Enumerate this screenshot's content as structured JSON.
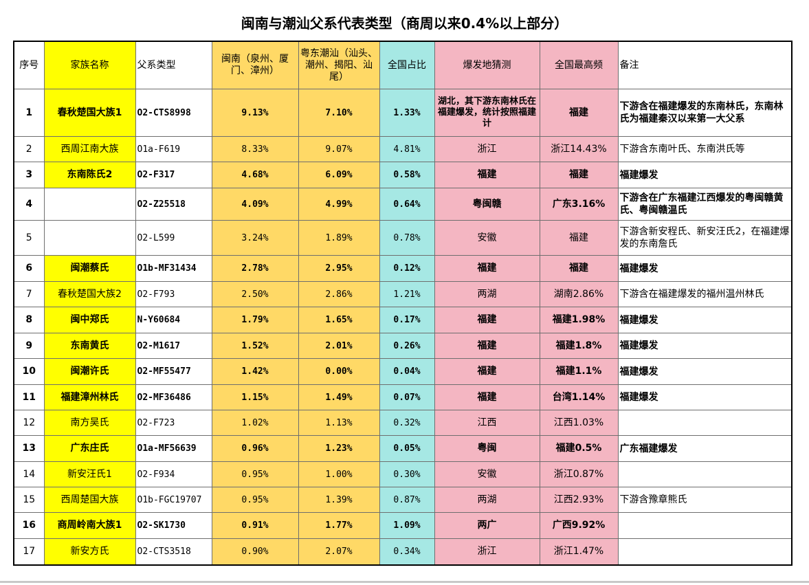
{
  "title": "闽南与潮汕父系代表类型（商周以来0.4%以上部分）",
  "headers": {
    "seq": "序号",
    "family": "家族名称",
    "haplo": "父系类型",
    "minnan": "闽南（泉州、厦门、漳州）",
    "chaoshan": "粤东潮汕（汕头、潮州、揭阳、汕尾）",
    "national": "全国占比",
    "origin": "爆发地猜测",
    "highest": "全国最高频",
    "note": "备注"
  },
  "colors": {
    "family_col": "#ffff00",
    "region_cols": "#ffd966",
    "national_col": "#a6e8e4",
    "guess_cols": "#f4b6c2"
  },
  "rows": [
    {
      "seq": "1",
      "family": "春秋楚国大族1",
      "haplo": "O2-CTS8998",
      "minnan": "9.13%",
      "chaoshan": "7.10%",
      "national": "1.33%",
      "origin": "湖北，其下游东南林氏在福建爆发，统计按照福建计",
      "highest": "福建",
      "note": "下游含在福建爆发的东南林氏，东南林氏为福建秦汉以来第一大父系",
      "bold": true,
      "family_hl": true
    },
    {
      "seq": "2",
      "family": "西周江南大族",
      "haplo": "O1a-F619",
      "minnan": "8.33%",
      "chaoshan": "9.07%",
      "national": "4.81%",
      "origin": "浙江",
      "highest": "浙江14.43%",
      "note": "下游含东南叶氏、东南洪氏等",
      "bold": false,
      "family_hl": true
    },
    {
      "seq": "3",
      "family": "东南陈氏2",
      "haplo": "O2-F317",
      "minnan": "4.68%",
      "chaoshan": "6.09%",
      "national": "0.58%",
      "origin": "福建",
      "highest": "福建",
      "note": "福建爆发",
      "bold": true,
      "family_hl": true
    },
    {
      "seq": "4",
      "family": "",
      "haplo": "O2-Z25518",
      "minnan": "4.09%",
      "chaoshan": "4.99%",
      "national": "0.64%",
      "origin": "粤闽赣",
      "highest": "广东3.16%",
      "note": "下游含在广东福建江西爆发的粤闽赣黄氏、粤闽赣温氏",
      "bold": true,
      "family_hl": false
    },
    {
      "seq": "5",
      "family": "",
      "haplo": "O2-L599",
      "minnan": "3.24%",
      "chaoshan": "1.89%",
      "national": "0.78%",
      "origin": "安徽",
      "highest": "福建",
      "note": "下游含新安程氏、新安汪氏2，在福建爆发的东南詹氏",
      "bold": false,
      "family_hl": false
    },
    {
      "seq": "6",
      "family": "闽潮蔡氏",
      "haplo": "O1b-MF31434",
      "minnan": "2.78%",
      "chaoshan": "2.95%",
      "national": "0.12%",
      "origin": "福建",
      "highest": "福建",
      "note": "福建爆发",
      "bold": true,
      "family_hl": true
    },
    {
      "seq": "7",
      "family": "春秋楚国大族2",
      "haplo": "O2-F793",
      "minnan": "2.50%",
      "chaoshan": "2.86%",
      "national": "1.21%",
      "origin": "两湖",
      "highest": "湖南2.86%",
      "note": "下游含在福建爆发的福州温州林氏",
      "bold": false,
      "family_hl": true
    },
    {
      "seq": "8",
      "family": "闽中郑氏",
      "haplo": "N-Y60684",
      "minnan": "1.79%",
      "chaoshan": "1.65%",
      "national": "0.17%",
      "origin": "福建",
      "highest": "福建1.98%",
      "note": "福建爆发",
      "bold": true,
      "family_hl": true
    },
    {
      "seq": "9",
      "family": "东南黄氏",
      "haplo": "O2-M1617",
      "minnan": "1.52%",
      "chaoshan": "2.01%",
      "national": "0.26%",
      "origin": "福建",
      "highest": "福建1.8%",
      "note": "福建爆发",
      "bold": true,
      "family_hl": true
    },
    {
      "seq": "10",
      "family": "闽潮许氏",
      "haplo": "O2-MF55477",
      "minnan": "1.42%",
      "chaoshan": "0.00%",
      "national": "0.04%",
      "origin": "福建",
      "highest": "福建1.1%",
      "note": "福建爆发",
      "bold": true,
      "family_hl": true
    },
    {
      "seq": "11",
      "family": "福建漳州林氏",
      "haplo": "O2-MF36486",
      "minnan": "1.15%",
      "chaoshan": "1.49%",
      "national": "0.07%",
      "origin": "福建",
      "highest": "台湾1.14%",
      "note": "福建爆发",
      "bold": true,
      "family_hl": true
    },
    {
      "seq": "12",
      "family": "南方吴氏",
      "haplo": "O2-F723",
      "minnan": "1.02%",
      "chaoshan": "1.13%",
      "national": "0.32%",
      "origin": "江西",
      "highest": "江西1.03%",
      "note": "",
      "bold": false,
      "family_hl": true
    },
    {
      "seq": "13",
      "family": "广东庄氏",
      "haplo": "O1a-MF56639",
      "minnan": "0.96%",
      "chaoshan": "1.23%",
      "national": "0.05%",
      "origin": "粤闽",
      "highest": "福建0.5%",
      "note": "广东福建爆发",
      "bold": true,
      "family_hl": true
    },
    {
      "seq": "14",
      "family": "新安汪氏1",
      "haplo": "O2-F934",
      "minnan": "0.95%",
      "chaoshan": "1.00%",
      "national": "0.30%",
      "origin": "安徽",
      "highest": "浙江0.87%",
      "note": "",
      "bold": false,
      "family_hl": true
    },
    {
      "seq": "15",
      "family": "西周楚国大族",
      "haplo": "O1b-FGC19707",
      "minnan": "0.95%",
      "chaoshan": "1.39%",
      "national": "0.87%",
      "origin": "两湖",
      "highest": "江西2.93%",
      "note": "下游含豫章熊氏",
      "bold": false,
      "family_hl": true
    },
    {
      "seq": "16",
      "family": "商周岭南大族1",
      "haplo": "O2-SK1730",
      "minnan": "0.91%",
      "chaoshan": "1.77%",
      "national": "1.09%",
      "origin": "两广",
      "highest": "广西9.92%",
      "note": "",
      "bold": true,
      "family_hl": true
    },
    {
      "seq": "17",
      "family": "新安方氏",
      "haplo": "O2-CTS3518",
      "minnan": "0.90%",
      "chaoshan": "2.07%",
      "national": "0.34%",
      "origin": "浙江",
      "highest": "浙江1.47%",
      "note": "",
      "bold": false,
      "family_hl": true
    }
  ]
}
